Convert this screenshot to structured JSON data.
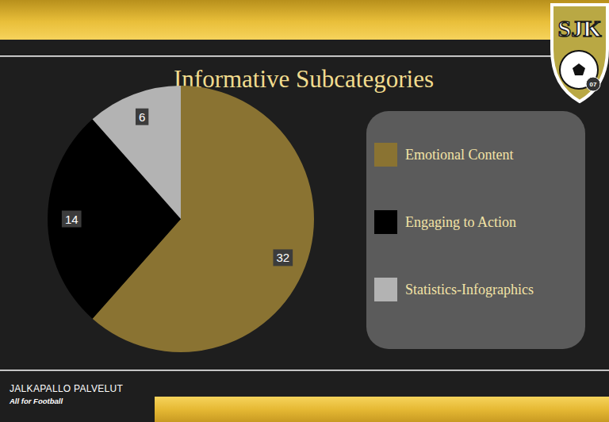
{
  "chart_data": {
    "type": "pie",
    "title": "Informative Subcategories",
    "categories": [
      "Emotional Content",
      "Engaging to Action",
      "Statistics-Infographics"
    ],
    "values": [
      32,
      14,
      6
    ],
    "colors": [
      "#8a7332",
      "#000000",
      "#b3b3b3"
    ],
    "data_labels": true,
    "legend": "right"
  },
  "logo": {
    "text": "SJK",
    "badge": "07"
  },
  "footer": {
    "company": "JALKAPALLO PALVELUT",
    "slogan": "All for Football"
  }
}
